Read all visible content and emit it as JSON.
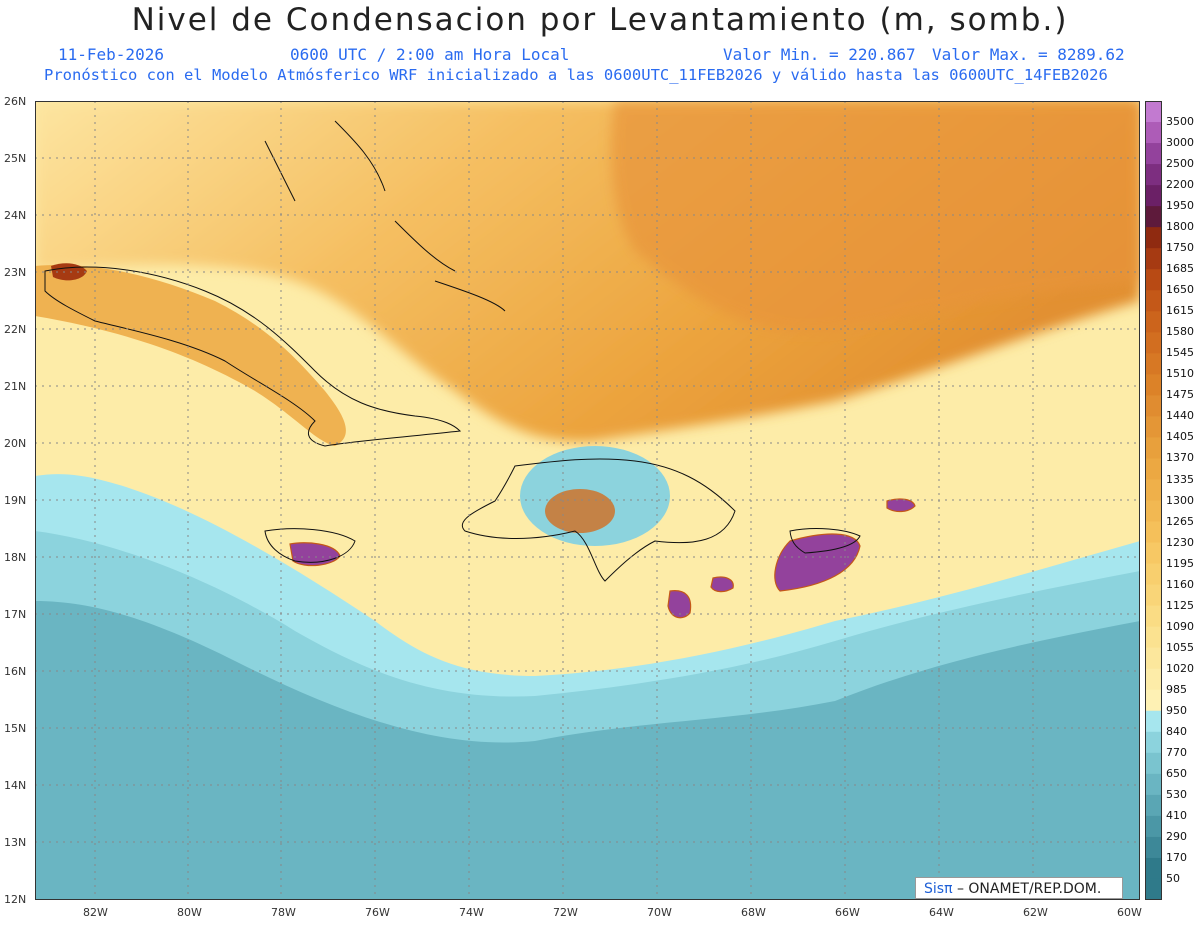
{
  "header": {
    "title": "Nivel de Condensacion por Levantamiento (m, somb.)",
    "date": "11-Feb-2026",
    "time": "0600 UTC / 2:00 am Hora Local",
    "valmin": "Valor Min. = 220.867",
    "valmax": "Valor Max. = 8289.62",
    "forecast": "Pronóstico con el Modelo Atmósferico WRF inicializado a las 0600UTC_11FEB2026 y válido hasta las  0600UTC_14FEB2026"
  },
  "axes": {
    "lat": [
      "26N",
      "25N",
      "24N",
      "23N",
      "22N",
      "21N",
      "20N",
      "19N",
      "18N",
      "17N",
      "16N",
      "15N",
      "14N",
      "13N",
      "12N"
    ],
    "lon": [
      "82W",
      "80W",
      "78W",
      "76W",
      "74W",
      "72W",
      "70W",
      "68W",
      "66W",
      "64W",
      "62W",
      "60W"
    ]
  },
  "colorbar": {
    "labels": [
      "3500",
      "3000",
      "2500",
      "2200",
      "1950",
      "1800",
      "1750",
      "1685",
      "1650",
      "1615",
      "1580",
      "1545",
      "1510",
      "1475",
      "1440",
      "1405",
      "1370",
      "1335",
      "1300",
      "1265",
      "1230",
      "1195",
      "1160",
      "1125",
      "1090",
      "1055",
      "1020",
      "985",
      "950",
      "840",
      "770",
      "650",
      "530",
      "410",
      "290",
      "170",
      "50"
    ],
    "colors": [
      "#c27ad0",
      "#ad5cb7",
      "#93429c",
      "#7d2e80",
      "#6b2066",
      "#5e1a3b",
      "#8f2a10",
      "#a63a12",
      "#b84a14",
      "#c45818",
      "#cc641c",
      "#d26e20",
      "#d77824",
      "#dc8228",
      "#e08c30",
      "#e49636",
      "#e8a03c",
      "#eca842",
      "#efb04a",
      "#f2b852",
      "#f5c05a",
      "#f7c864",
      "#f8cf6e",
      "#f9d578",
      "#fadc84",
      "#fbe290",
      "#fce79c",
      "#fdeca8",
      "#fef1b4",
      "#a6e6ee",
      "#8cd3dd",
      "#7ac4cf",
      "#6ab5c2",
      "#5aa6b4",
      "#4b97a6",
      "#3d8898",
      "#2f7a8a"
    ],
    "min_value": 50,
    "max_value": 3500
  },
  "logo": {
    "sis": "Sisπ",
    "rest": "– ONAMET/REP.DOM."
  },
  "colors": {
    "subtitle": "#2a6bf0",
    "ocean_south": "#6ab5c2",
    "ocean_light": "#a6e6ee",
    "north_band": "#fce79c",
    "north_orange": "#e8a03c",
    "purple": "#93429c"
  }
}
